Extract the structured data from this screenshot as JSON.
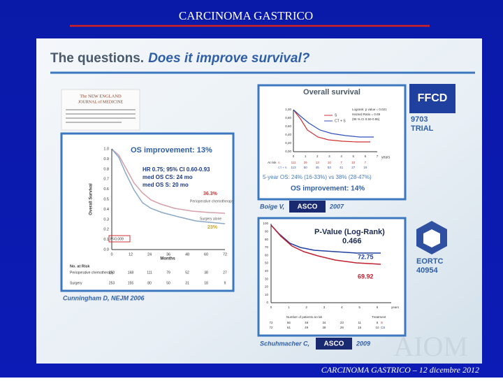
{
  "header": {
    "title": "CARCINOMA GASTRICO"
  },
  "slide": {
    "title_plain": "The questions.",
    "title_italic": "Does it improve survival?"
  },
  "nejm": {
    "line1": "The NEW ENGLAND",
    "line2": "JOURNAL of MEDICINE"
  },
  "left": {
    "heading": "OS improvement:  13%",
    "stats": [
      "HR 0.75; 95% CI 0.60-0.93",
      "med OS CS: 24 mo",
      "med OS S: 20 mo"
    ],
    "label_peri_pct": "36.3%",
    "label_peri": "Perioperative chemotherapy",
    "label_surg": "Surgery alone",
    "label_surg_pct": "23%",
    "pvalue": "P=0.009",
    "y_label": "Overall Survival",
    "yticks": [
      "1.0",
      "0.9",
      "0.8",
      "0.7",
      "0.6",
      "0.5",
      "0.4",
      "0.3",
      "0.2",
      "0.1",
      "0.0"
    ],
    "xticks": [
      "0",
      "12",
      "24",
      "36",
      "48",
      "60",
      "72"
    ],
    "x_label": "Months",
    "risk_title": "No. at Risk",
    "risk_rows": [
      {
        "label": "Perioperative chemotherapy",
        "values": [
          "250",
          "168",
          "111",
          "79",
          "52",
          "38",
          "27"
        ]
      },
      {
        "label": "Surgery",
        "values": [
          "253",
          "155",
          "80",
          "50",
          "31",
          "18",
          "9"
        ]
      }
    ],
    "citation": "Cunningham D, NEJM 2006"
  },
  "top_right": {
    "heading": "Overall survival",
    "yticks": [
      "1,00",
      "0,80",
      "0,60",
      "0,40",
      "0,20",
      "0,00"
    ],
    "xticks": [
      "0",
      "1",
      "2",
      "3",
      "4",
      "5",
      "6",
      "7"
    ],
    "x_label": "years",
    "legend": [
      "S",
      "CT + S"
    ],
    "stats": [
      "Logrank: p value = 0.021",
      "Hazard Ratio = 0.69",
      "(95 % CI 0.50-0.95)"
    ],
    "risk_title": "At risk",
    "risk_rows": [
      {
        "label": "S",
        "values": [
          "111",
          "29",
          "13",
          "10",
          "7",
          "10",
          "7"
        ]
      },
      {
        "label": "CT + S",
        "values": [
          "113",
          "50",
          "45",
          "53",
          "41",
          "27",
          "18"
        ]
      }
    ],
    "five_year": "5-year OS: 24% (16-33%) vs 38% (28-47%)",
    "improvement": "OS improvement:  14%",
    "logo": "FFCD",
    "trial_number": "9703",
    "trial_word": "TRIAL",
    "citation_name": "Boige V,",
    "citation_logo": "ASCO",
    "citation_year": "2007"
  },
  "bottom_right": {
    "heading": "P-Value (Log-Rank)",
    "pvalue": "0.466",
    "label_upper": "72.75",
    "label_lower": "69.92",
    "yticks": [
      "100",
      "90",
      "80",
      "70",
      "60",
      "50",
      "40",
      "30",
      "20",
      "10",
      "0"
    ],
    "xticks": [
      "0",
      "1",
      "2",
      "3",
      "4",
      "5",
      "6"
    ],
    "x_label": "years",
    "risk_title": "Number of patients at risk",
    "treatment": "Treatment",
    "risk_rows": [
      {
        "label": "S",
        "values": [
          "72",
          "56",
          "48",
          "34",
          "23",
          "11",
          "6"
        ]
      },
      {
        "label": "CS",
        "values": [
          "72",
          "61",
          "49",
          "38",
          "29",
          "15",
          "10"
        ]
      }
    ],
    "logo": "EORTC",
    "trial_number": "40954",
    "citation_name": "Schuhmacher C,",
    "citation_logo": "ASCO",
    "citation_year": "2009"
  },
  "watermark": "AIOM",
  "footer": "CARCINOMA GASTRICO – 12 dicembre 2012"
}
